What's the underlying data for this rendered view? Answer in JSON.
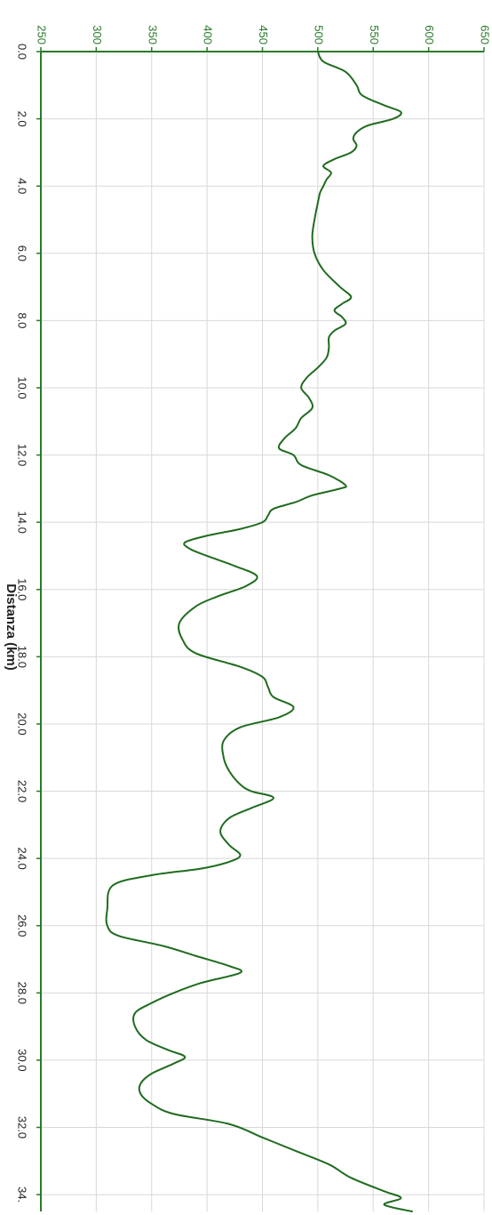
{
  "chart_data": {
    "type": "line",
    "orientation": "rotated-90-clockwise",
    "title": "",
    "xlabel": "Distanza (km)",
    "ylabel": "",
    "xlim": [
      0,
      34.5
    ],
    "ylim": [
      250,
      650
    ],
    "x_ticks": [
      0,
      2,
      4,
      6,
      8,
      10,
      12,
      14,
      16,
      18,
      20,
      22,
      24,
      26,
      28,
      30,
      32,
      34
    ],
    "x_tick_labels": [
      "0.0",
      "2.0",
      "4.0",
      "6.0",
      "8.0",
      "10.0",
      "12.0",
      "14.0",
      "16.0",
      "18.0",
      "20.0",
      "22.0",
      "24.0",
      "26.0",
      "28.0",
      "30.0",
      "32.0",
      "34."
    ],
    "y_ticks": [
      250,
      300,
      350,
      400,
      450,
      500,
      550,
      600,
      650
    ],
    "y_tick_labels": [
      "250",
      "300",
      "350",
      "400",
      "450",
      "500",
      "550",
      "600",
      "650"
    ],
    "grid": true,
    "colors": {
      "line": "#1f6b1f",
      "axis": "#2a7a2a",
      "grid": "#d8d8d8",
      "text": "#222222"
    },
    "series": [
      {
        "name": "",
        "x": [
          0.0,
          0.3,
          0.6,
          1.0,
          1.3,
          1.6,
          1.8,
          2.0,
          2.2,
          2.4,
          2.6,
          2.8,
          3.0,
          3.2,
          3.4,
          3.6,
          3.8,
          4.0,
          4.2,
          4.5,
          5.0,
          5.5,
          6.0,
          6.5,
          7.0,
          7.3,
          7.5,
          7.7,
          7.9,
          8.1,
          8.3,
          8.5,
          8.8,
          9.1,
          9.4,
          9.7,
          10.0,
          10.3,
          10.6,
          10.9,
          11.2,
          11.5,
          11.8,
          12.0,
          12.3,
          12.6,
          12.9,
          13.0,
          13.2,
          13.4,
          13.6,
          13.8,
          14.0,
          14.2,
          14.4,
          14.6,
          14.8,
          15.0,
          15.3,
          15.6,
          15.9,
          16.2,
          16.5,
          17.0,
          17.5,
          17.9,
          18.3,
          18.6,
          18.9,
          19.2,
          19.5,
          19.8,
          20.1,
          20.5,
          21.0,
          21.4,
          21.8,
          22.0,
          22.2,
          22.5,
          22.8,
          23.2,
          23.6,
          23.9,
          24.1,
          24.3,
          24.5,
          24.8,
          25.5,
          26.0,
          26.3,
          26.6,
          26.9,
          27.2,
          27.4,
          27.7,
          28.0,
          28.3,
          28.6,
          29.0,
          29.4,
          29.7,
          29.9,
          30.1,
          30.4,
          30.7,
          31.0,
          31.3,
          31.6,
          31.9,
          32.3,
          32.7,
          33.1,
          33.5,
          33.9,
          34.1,
          34.3,
          34.5
        ],
        "y": [
          500,
          505,
          525,
          535,
          540,
          560,
          575,
          568,
          545,
          535,
          532,
          535,
          530,
          515,
          505,
          512,
          508,
          505,
          502,
          500,
          497,
          495,
          497,
          505,
          520,
          530,
          522,
          515,
          522,
          525,
          515,
          510,
          510,
          508,
          500,
          490,
          485,
          492,
          495,
          485,
          480,
          470,
          465,
          478,
          485,
          510,
          525,
          520,
          495,
          480,
          460,
          455,
          450,
          430,
          400,
          380,
          385,
          400,
          425,
          445,
          435,
          410,
          390,
          375,
          378,
          390,
          430,
          450,
          455,
          460,
          478,
          465,
          430,
          415,
          415,
          420,
          430,
          440,
          460,
          440,
          420,
          412,
          420,
          430,
          420,
          395,
          350,
          315,
          310,
          310,
          320,
          360,
          390,
          420,
          430,
          395,
          370,
          350,
          335,
          335,
          345,
          365,
          380,
          370,
          350,
          340,
          340,
          350,
          370,
          420,
          450,
          480,
          510,
          530,
          560,
          575,
          560,
          585
        ]
      }
    ]
  }
}
